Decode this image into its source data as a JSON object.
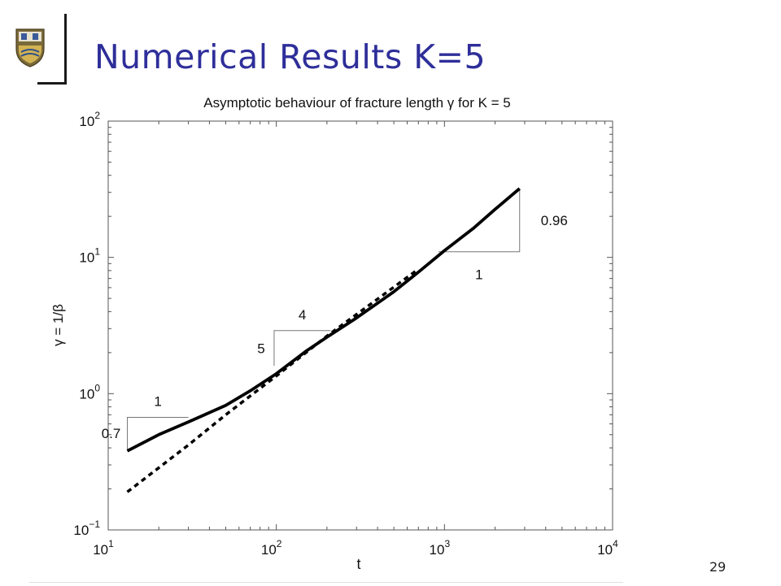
{
  "slide": {
    "title": "Numerical Results K=5",
    "page_number": "29",
    "logo": "university-crest-logo"
  },
  "chart_data": {
    "type": "line",
    "title": "Asymptotic behaviour of fracture length γ for K = 5",
    "xlabel": "t",
    "ylabel": "γ = 1/β",
    "x_scale": "log",
    "y_scale": "log",
    "xlim": [
      10,
      10000
    ],
    "ylim": [
      0.1,
      100
    ],
    "x_ticks": [
      {
        "base": "10",
        "exp": "1",
        "value": 10
      },
      {
        "base": "10",
        "exp": "2",
        "value": 100
      },
      {
        "base": "10",
        "exp": "3",
        "value": 1000
      },
      {
        "base": "10",
        "exp": "4",
        "value": 10000
      }
    ],
    "y_ticks": [
      {
        "base": "10",
        "exp": "−1",
        "value": 0.1
      },
      {
        "base": "10",
        "exp": "0",
        "value": 1
      },
      {
        "base": "10",
        "exp": "1",
        "value": 10
      },
      {
        "base": "10",
        "exp": "2",
        "value": 100
      }
    ],
    "grid": false,
    "series": [
      {
        "style": "solid",
        "color": "#000000",
        "x": [
          13,
          20,
          30,
          50,
          70,
          100,
          150,
          200,
          300,
          500,
          700,
          1000,
          1500,
          2000,
          2800
        ],
        "y": [
          0.38,
          0.5,
          0.62,
          0.82,
          1.05,
          1.4,
          2.05,
          2.6,
          3.6,
          5.6,
          7.8,
          11.2,
          16.5,
          22.5,
          32.0
        ]
      },
      {
        "style": "dashed",
        "color": "#000000",
        "x": [
          13,
          30,
          50,
          100,
          200,
          400,
          700
        ],
        "y": [
          0.19,
          0.42,
          0.7,
          1.35,
          2.65,
          4.95,
          8.2
        ]
      }
    ],
    "slope_triangles": [
      {
        "x1": 13,
        "x2": 30,
        "y1": 0.39,
        "y2": 0.67,
        "base_label": "1",
        "height_label": "0.7"
      },
      {
        "x1": 97,
        "x2": 210,
        "y1": 1.6,
        "y2": 2.9,
        "base_label": "4",
        "height_label": "5"
      },
      {
        "x1": 920,
        "x2": 2800,
        "y1": 11.0,
        "y2": 32.0,
        "base_label": "1",
        "height_label": "0.96"
      }
    ]
  }
}
